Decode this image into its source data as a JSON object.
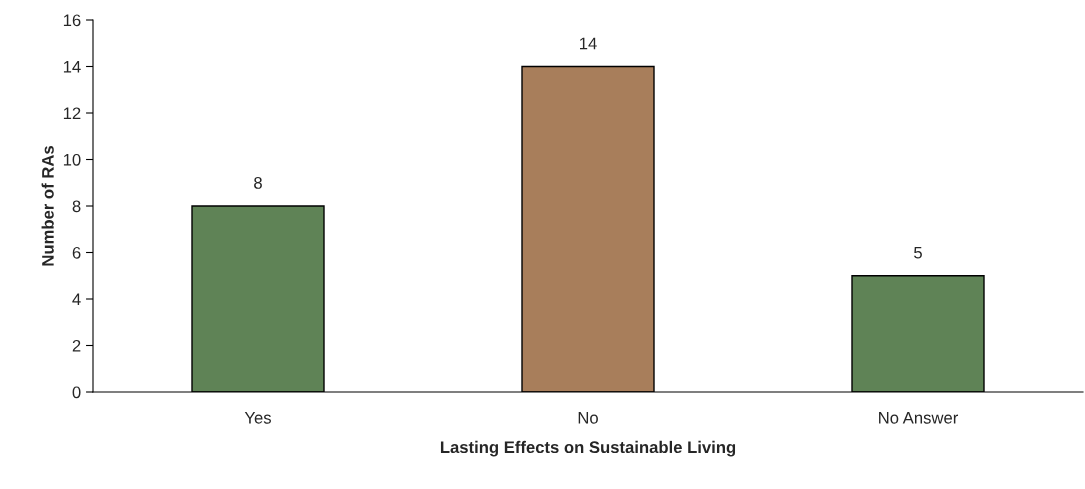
{
  "chart_data": {
    "type": "bar",
    "xlabel": "Lasting Effects on Sustainable Living",
    "ylabel": "Number of RAs",
    "categories": [
      "Yes",
      "No",
      "No Answer"
    ],
    "values": [
      8,
      14,
      5
    ],
    "colors": [
      "#5b8a4f",
      "#b57d4e",
      "#5b8a4f"
    ],
    "ylim": [
      0,
      16
    ],
    "yticks": [
      0,
      2,
      4,
      6,
      8,
      10,
      12,
      14,
      16
    ],
    "data_labels": true,
    "grid": false,
    "legend": false
  }
}
